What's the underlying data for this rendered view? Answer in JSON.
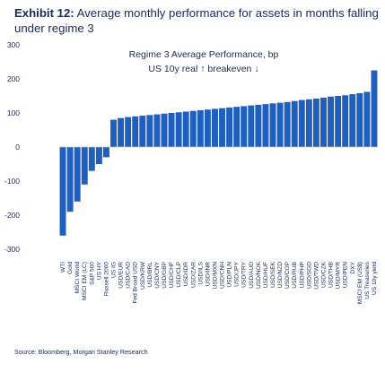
{
  "exhibit": {
    "label": "Exhibit 12:",
    "title": "Average monthly performance for assets in months falling under regime 3"
  },
  "source": "Source: Bloomberg, Morgan Stanley Research",
  "colors": {
    "bar": "#1f5fbf",
    "text": "#1b2a5a",
    "axis": "#c9c9c9"
  },
  "chart_data": {
    "type": "bar",
    "title": "Regime 3 Average Performance, bp",
    "subtitle": "US 10y real ↑ breakeven ↓",
    "xlabel": "",
    "ylabel": "",
    "ylim": [
      -300,
      300
    ],
    "yticks": [
      300,
      200,
      100,
      0,
      -100,
      -200,
      -300
    ],
    "grid": false,
    "categories": [
      "WTI",
      "Gold",
      "MSCI World",
      "MSCI EM (LC)",
      "S&P 500",
      "US HY",
      "Russell 2000",
      "US IG",
      "USD/EUR",
      "USD/CAD",
      "Fed Broad USD",
      "USD/KRW",
      "USD/BRL",
      "USD/CNY",
      "USD/GBP",
      "USD/CHF",
      "USD/CLP",
      "USD/IDR",
      "USD/ZAR",
      "USD/ILS",
      "USD/INR",
      "USD/MXN",
      "USD/CNH",
      "USD/PLN",
      "USD/JPY",
      "USD/TRY",
      "USD/AUD",
      "USD/NOK",
      "USD/HUF",
      "USD/SEK",
      "USD/NZD",
      "USD/COP",
      "USD/RUB",
      "USD/PHP",
      "USD/SGD",
      "USD/TWD",
      "USD/CZK",
      "USD/THB",
      "USD/MYR",
      "USD/PEN",
      "DXY",
      "MSCI EM (US$)",
      "US Treasuries",
      "US 10y yield"
    ],
    "values": [
      -260,
      -190,
      -160,
      -110,
      -70,
      -50,
      -30,
      80,
      85,
      88,
      90,
      92,
      94,
      96,
      98,
      100,
      102,
      104,
      106,
      108,
      110,
      112,
      114,
      116,
      118,
      120,
      122,
      124,
      126,
      128,
      130,
      132,
      135,
      138,
      140,
      142,
      145,
      148,
      150,
      152,
      155,
      158,
      162,
      225
    ]
  }
}
